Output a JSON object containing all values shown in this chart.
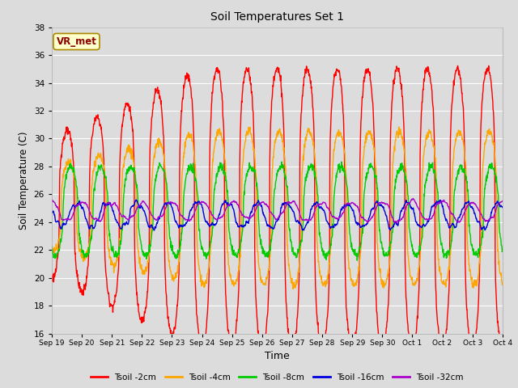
{
  "title": "Soil Temperatures Set 1",
  "xlabel": "Time",
  "ylabel": "Soil Temperature (C)",
  "ylim": [
    16,
    38
  ],
  "yticks": [
    16,
    18,
    20,
    22,
    24,
    26,
    28,
    30,
    32,
    34,
    36,
    38
  ],
  "plot_bg_color": "#dcdcdc",
  "grid_color": "#ffffff",
  "series": [
    {
      "label": "Tsoil -2cm",
      "color": "#ff0000",
      "lw": 1.0
    },
    {
      "label": "Tsoil -4cm",
      "color": "#ffa500",
      "lw": 1.0
    },
    {
      "label": "Tsoil -8cm",
      "color": "#00cc00",
      "lw": 1.0
    },
    {
      "label": "Tsoil -16cm",
      "color": "#0000dd",
      "lw": 1.0
    },
    {
      "label": "Tsoil -32cm",
      "color": "#aa00cc",
      "lw": 1.0
    }
  ],
  "annotation_text": "VR_met",
  "xtick_labels": [
    "Sep 19",
    "Sep 20",
    "Sep 21",
    "Sep 22",
    "Sep 23",
    "Sep 24",
    "Sep 25",
    "Sep 26",
    "Sep 27",
    "Sep 28",
    "Sep 29",
    "Sep 30",
    "Oct 1",
    "Oct 2",
    "Oct 3",
    "Oct 4"
  ],
  "n_points": 1440
}
